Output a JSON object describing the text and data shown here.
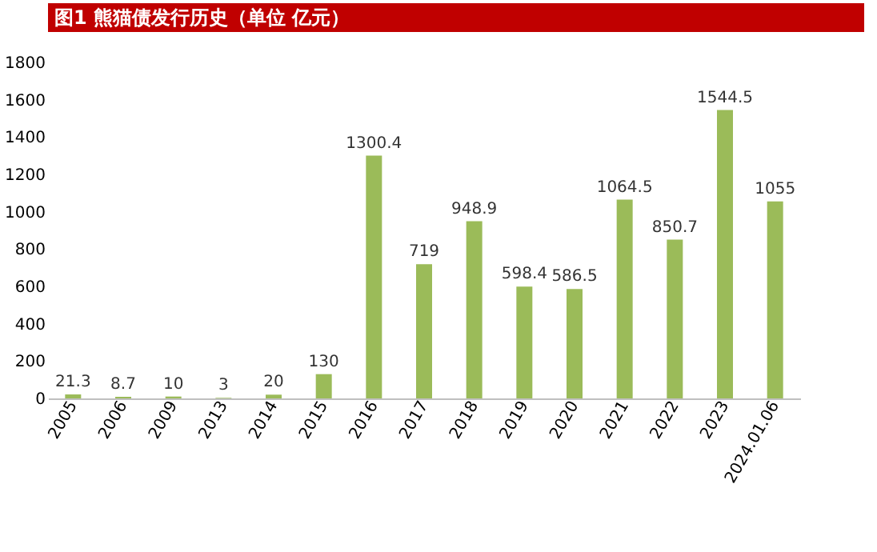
{
  "chart_data": {
    "type": "bar",
    "title": "图1 熊猫债发行历史（单位 亿元）",
    "categories": [
      "2005",
      "2006",
      "2009",
      "2013",
      "2014",
      "2015",
      "2016",
      "2017",
      "2018",
      "2019",
      "2020",
      "2021",
      "2022",
      "2023",
      "2024.01.06"
    ],
    "values": [
      21.3,
      8.7,
      10,
      3,
      20,
      130,
      1300.4,
      719,
      948.9,
      598.4,
      586.5,
      1064.5,
      850.7,
      1544.5,
      1055
    ],
    "color": "#9bbb59",
    "ylim": [
      0,
      1800
    ],
    "yticks": [
      0,
      200,
      400,
      600,
      800,
      1000,
      1200,
      1400,
      1600,
      1800
    ],
    "grid": false,
    "data_labels": true
  }
}
